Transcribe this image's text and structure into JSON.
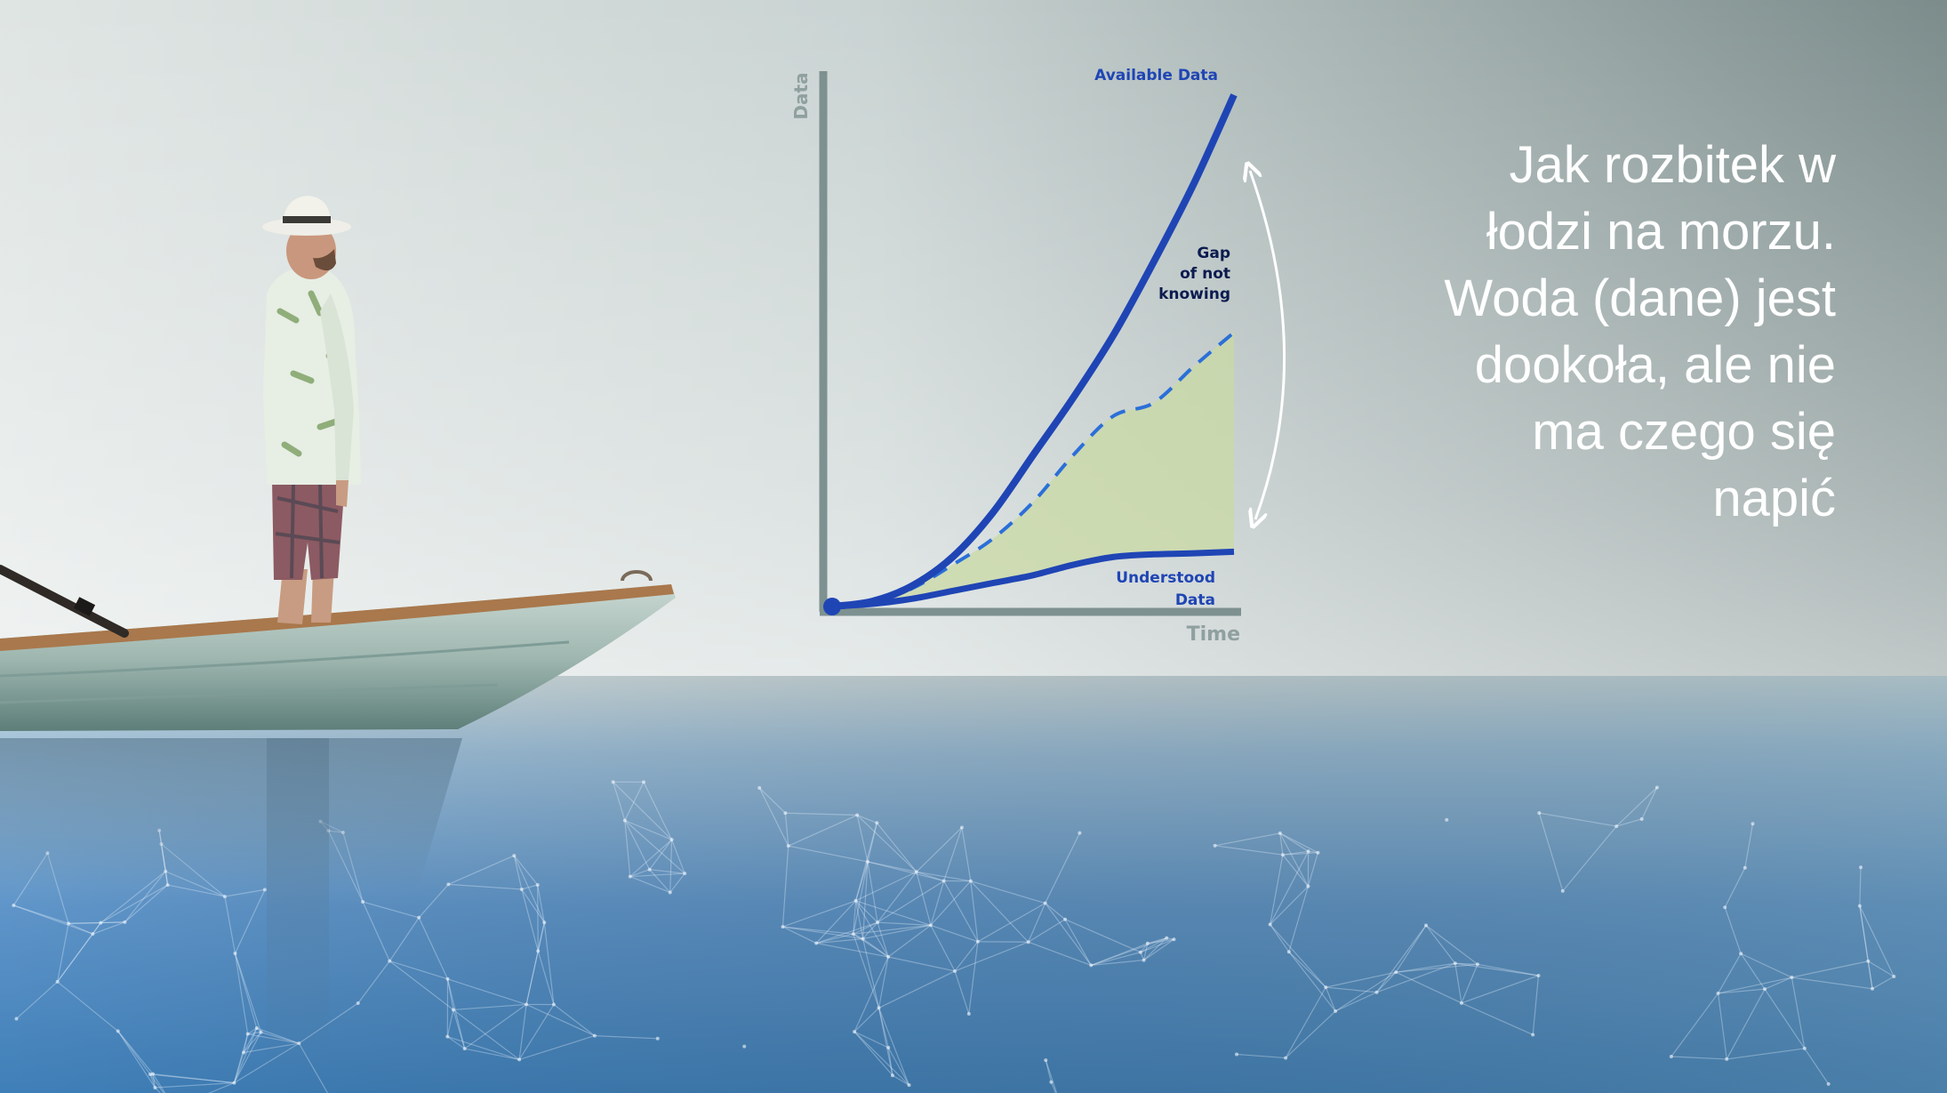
{
  "slide": {
    "caption_lines": [
      "Jak rozbitek w",
      "łodzi na morzu.",
      "Woda (dane) jest",
      "dookoła, ale nie",
      "ma czego się",
      "napić"
    ]
  },
  "colors": {
    "sky_top": "#c9d3d3",
    "sky_right": "#7f908f",
    "sea": "#5f93c7",
    "available_line": "#1f45b5",
    "understood_line": "#1f45b5",
    "dashed_line": "#2b6fd8",
    "understood_fill": "#c9d9a4",
    "axis": "#7d9190",
    "gap_label": "#0c1b4f",
    "arrow": "#ffffff"
  },
  "illustration": {
    "subject": "man in hat and shirt standing in rowing boat on sea",
    "icons": [
      "boat-icon",
      "oar-icon",
      "person-icon",
      "network-mesh-icon"
    ]
  },
  "chart_data": {
    "type": "line",
    "xlabel": "Time",
    "ylabel": "Data",
    "xlim": [
      0,
      10
    ],
    "ylim": [
      0,
      10
    ],
    "grid": false,
    "legend": "none",
    "series": [
      {
        "name": "Available Data",
        "style": "solid",
        "x": [
          0,
          1,
          2,
          3,
          4,
          5,
          6,
          7,
          8,
          9,
          10
        ],
        "y": [
          0.0,
          0.1,
          0.4,
          0.95,
          1.8,
          2.9,
          4.0,
          5.2,
          6.6,
          8.1,
          9.8
        ]
      },
      {
        "name": "Understood Data",
        "style": "solid",
        "x": [
          0,
          1,
          2,
          3,
          4,
          5,
          6,
          7,
          8,
          9,
          10
        ],
        "y": [
          0.0,
          0.05,
          0.15,
          0.3,
          0.45,
          0.6,
          0.8,
          0.95,
          1.0,
          1.02,
          1.05
        ]
      },
      {
        "name": "",
        "style": "dashed",
        "x": [
          0,
          1,
          2,
          3,
          4,
          5,
          6,
          7,
          8,
          9,
          10
        ],
        "y": [
          0.0,
          0.08,
          0.35,
          0.8,
          1.3,
          2.0,
          2.9,
          3.65,
          3.9,
          4.6,
          5.25
        ]
      }
    ],
    "annotations": [
      {
        "text_lines": [
          "Gap",
          "of not",
          "knowing"
        ],
        "target": "gap between Available Data and Understood Data"
      }
    ]
  }
}
